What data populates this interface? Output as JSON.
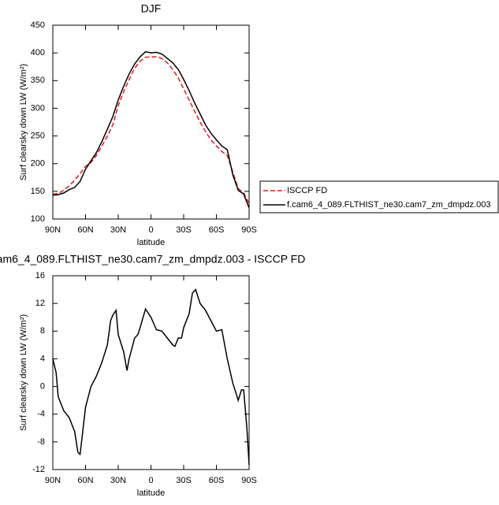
{
  "chart_data": [
    {
      "type": "line",
      "title": "DJF",
      "xlabel": "latitude",
      "ylabel": "Surf clearsky down LW (W/m²)",
      "x": [
        90,
        85,
        80,
        75,
        70,
        65,
        60,
        55,
        50,
        45,
        40,
        35,
        30,
        25,
        20,
        15,
        10,
        5,
        0,
        -5,
        -10,
        -15,
        -20,
        -25,
        -30,
        -35,
        -40,
        -45,
        -50,
        -55,
        -60,
        -65,
        -70,
        -75,
        -80,
        -85,
        -90
      ],
      "series": [
        {
          "name": "ISCCP FD",
          "color": "#e41a1c",
          "dash": true,
          "values": [
            145,
            146,
            152,
            160,
            170,
            182,
            195,
            202,
            215,
            232,
            250,
            270,
            305,
            330,
            352,
            372,
            385,
            392,
            393,
            393,
            390,
            382,
            370,
            355,
            335,
            315,
            295,
            275,
            258,
            243,
            232,
            222,
            215,
            185,
            155,
            147,
            128
          ]
        },
        {
          "name": "f.cam6_4_089.FLTHIST_ne30.cam7_zm_dmpdz.003",
          "color": "#000000",
          "dash": false,
          "values": [
            143,
            144,
            147,
            153,
            157,
            168,
            190,
            205,
            220,
            240,
            262,
            285,
            315,
            340,
            362,
            380,
            393,
            402,
            400,
            401,
            398,
            390,
            382,
            370,
            352,
            332,
            310,
            290,
            270,
            255,
            243,
            232,
            225,
            180,
            152,
            145,
            120
          ]
        }
      ],
      "xlim": [
        90,
        -90
      ],
      "xticks": [
        {
          "value": 90,
          "label": "90N"
        },
        {
          "value": 60,
          "label": "60N"
        },
        {
          "value": 30,
          "label": "30N"
        },
        0,
        {
          "value": -30,
          "label": "30S"
        },
        {
          "value": -60,
          "label": "60S"
        },
        {
          "value": -90,
          "label": "90S"
        }
      ],
      "ylim": [
        100,
        450
      ],
      "yticks": [
        100,
        150,
        200,
        250,
        300,
        350,
        400,
        450
      ]
    },
    {
      "type": "line",
      "title": "am6_4_089.FLTHIST_ne30.cam7_zm_dmpdz.003 - ISCCP FD",
      "xlabel": "latitude",
      "ylabel": "Surf clearsky down LW (W/m²)",
      "color": "#000000",
      "x": [
        90,
        87,
        85,
        80,
        75,
        70,
        67,
        65,
        60,
        55,
        50,
        45,
        40,
        37,
        35,
        32,
        30,
        25,
        22,
        20,
        15,
        12,
        10,
        5,
        0,
        -5,
        -10,
        -15,
        -20,
        -22,
        -25,
        -28,
        -30,
        -35,
        -38,
        -41,
        -45,
        -50,
        -55,
        -60,
        -65,
        -70,
        -75,
        -80,
        -83,
        -85,
        -88,
        -90
      ],
      "values": [
        4,
        2,
        -1.5,
        -3.5,
        -4.5,
        -6.5,
        -9.5,
        -9.8,
        -3,
        0,
        1.5,
        3.5,
        6,
        9.5,
        10.3,
        11,
        7.5,
        5,
        2.3,
        4,
        7,
        7.5,
        8.5,
        11.2,
        10,
        8.2,
        8,
        7,
        6,
        5.8,
        7,
        7,
        8.5,
        10.5,
        13.5,
        14,
        12,
        11,
        9.5,
        8,
        8.2,
        4,
        0.5,
        -2,
        -0.5,
        -0.5,
        -6,
        -11.3
      ],
      "xlim": [
        90,
        -90
      ],
      "xticks": [
        {
          "value": 90,
          "label": "90N"
        },
        {
          "value": 60,
          "label": "60N"
        },
        {
          "value": 30,
          "label": "30N"
        },
        0,
        {
          "value": -30,
          "label": "30S"
        },
        {
          "value": -60,
          "label": "60S"
        },
        {
          "value": -90,
          "label": "90S"
        }
      ],
      "ylim": [
        -12,
        16
      ],
      "yticks": [
        -12,
        -8,
        -4,
        0,
        4,
        8,
        12,
        16
      ]
    }
  ]
}
